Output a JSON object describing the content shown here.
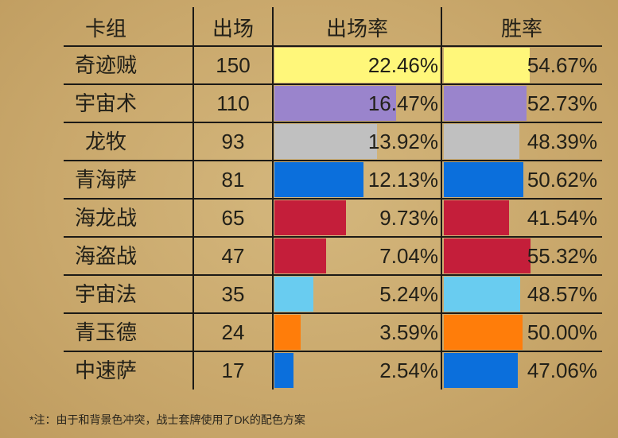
{
  "chart_data": {
    "type": "table",
    "columns": [
      "卡组",
      "出场",
      "出场率",
      "胜率"
    ],
    "rows": [
      {
        "deck": "奇迹贼",
        "count": 150,
        "play_rate": "22.46%",
        "win_rate": "54.67%",
        "color": "#FFF77A"
      },
      {
        "deck": "宇宙术",
        "count": 110,
        "play_rate": "16.47%",
        "win_rate": "52.73%",
        "color": "#9A84CC"
      },
      {
        "deck": "龙牧",
        "count": 93,
        "play_rate": "13.92%",
        "win_rate": "48.39%",
        "color": "#C0C0C0"
      },
      {
        "deck": "青海萨",
        "count": 81,
        "play_rate": "12.13%",
        "win_rate": "50.62%",
        "color": "#0B6FDC"
      },
      {
        "deck": "海龙战",
        "count": 65,
        "play_rate": "9.73%",
        "win_rate": "41.54%",
        "color": "#C41E3A"
      },
      {
        "deck": "海盗战",
        "count": 47,
        "play_rate": "7.04%",
        "win_rate": "55.32%",
        "color": "#C41E3A"
      },
      {
        "deck": "宇宙法",
        "count": 35,
        "play_rate": "5.24%",
        "win_rate": "48.57%",
        "color": "#69CCF0"
      },
      {
        "deck": "青玉德",
        "count": 24,
        "play_rate": "3.59%",
        "win_rate": "50.00%",
        "color": "#FF7D0A"
      },
      {
        "deck": "中速萨",
        "count": 17,
        "play_rate": "2.54%",
        "win_rate": "47.06%",
        "color": "#0B6FDC"
      }
    ]
  },
  "note": "*注：由于和背景色冲突，战士套牌使用了DK的配色方案"
}
